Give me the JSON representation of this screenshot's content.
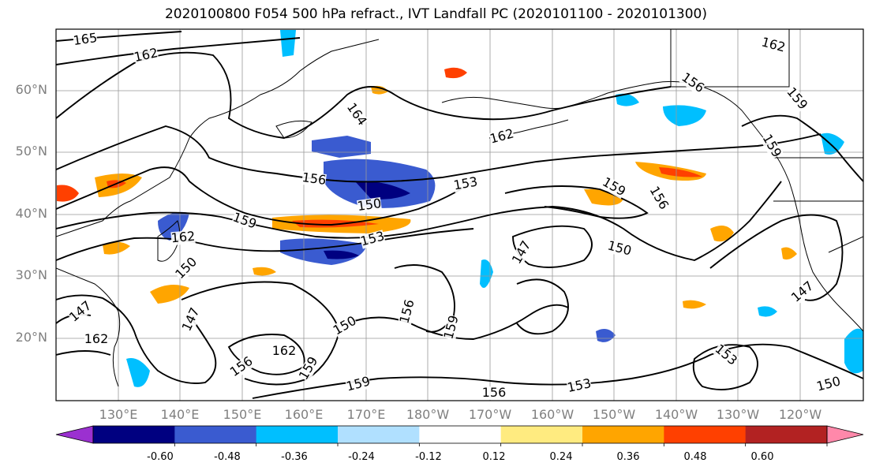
{
  "title": "2020100800 F054 500 hPa refract., IVT Landfall PC (2020101100 - 2020101300)",
  "lat_labels": [
    "60°N",
    "50°N",
    "40°N",
    "30°N",
    "20°N"
  ],
  "lon_labels": [
    "130°E",
    "140°E",
    "150°E",
    "160°E",
    "170°E",
    "180°W",
    "170°W",
    "160°W",
    "150°W",
    "140°W",
    "130°W",
    "120°W"
  ],
  "colorbar": {
    "ticks": [
      "-0.60",
      "-0.48",
      "-0.36",
      "-0.24",
      "-0.12",
      "0.12",
      "0.24",
      "0.36",
      "0.48",
      "0.60"
    ],
    "colors": [
      "#9b30d0",
      "#000080",
      "#3a5bd0",
      "#00bfff",
      "#b0e0ff",
      "#ffffff",
      "#ffeb80",
      "#ffa500",
      "#ff4000",
      "#b22222",
      "#ff88aa"
    ]
  },
  "contour_labels": [
    "165",
    "162",
    "164",
    "162",
    "156",
    "153",
    "150",
    "159",
    "153",
    "162",
    "150",
    "147",
    "147",
    "162",
    "162",
    "156",
    "159",
    "150",
    "156",
    "159",
    "159",
    "153",
    "156",
    "147",
    "159",
    "156",
    "150",
    "147",
    "162",
    "159",
    "159",
    "150",
    "153",
    "156"
  ]
}
